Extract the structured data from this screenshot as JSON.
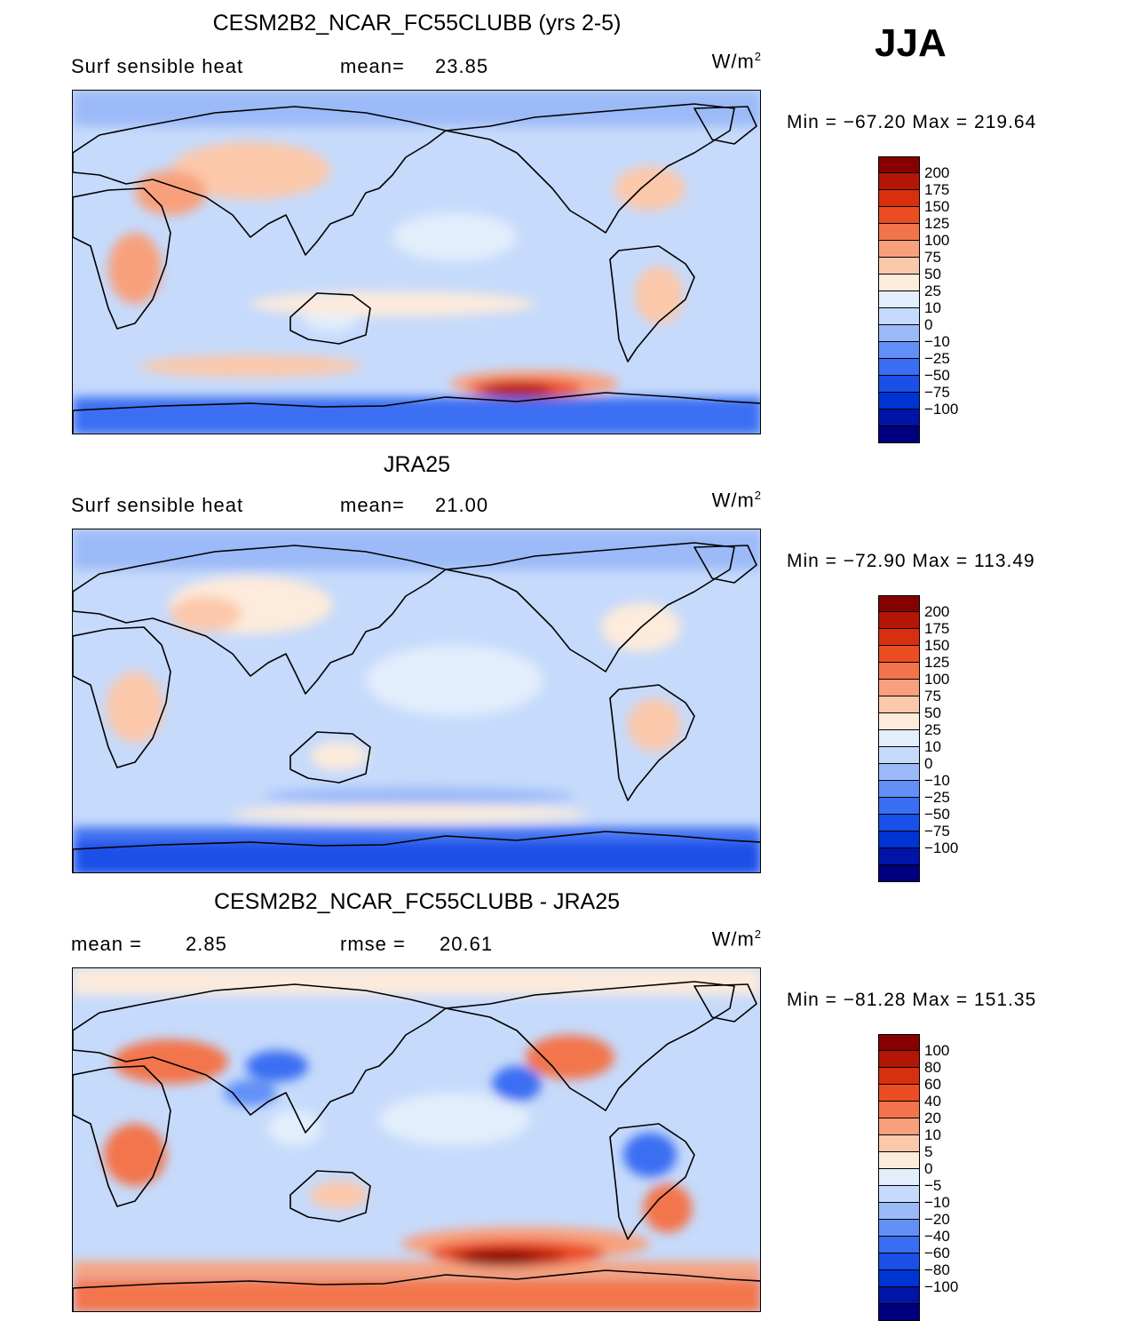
{
  "season": "JJA",
  "colors": {
    "full": [
      "#00007e",
      "#0014a8",
      "#0033d4",
      "#1a4fe8",
      "#3a6ef2",
      "#6290f7",
      "#9cbaf8",
      "#c6dafb",
      "#e2eefc",
      "#fdebdc",
      "#fcc8aa",
      "#f8a07c",
      "#f3744c",
      "#ec4c22",
      "#d8300f",
      "#b31606",
      "#850000"
    ],
    "diff": [
      "#00007e",
      "#0014a8",
      "#0033d4",
      "#1a4fe8",
      "#3a6ef2",
      "#6290f7",
      "#9cbaf8",
      "#c6dafb",
      "#e2eefc",
      "#fdebdc",
      "#fcc8aa",
      "#f8a07c",
      "#f3744c",
      "#ec4c22",
      "#d8300f",
      "#b31606",
      "#850000"
    ]
  },
  "panels": [
    {
      "title": "CESM2B2_NCAR_FC55CLUBB (yrs 2-5)",
      "left_label": "Surf  sensible  heat",
      "mid_label": "mean=",
      "mid_value": "23.85",
      "units": "W/m",
      "units_sup": "2",
      "minmax": "Min  =  −67.20  Max  =  219.64",
      "colorbar_labels": [
        "200",
        "175",
        "150",
        "125",
        "100",
        "75",
        "50",
        "25",
        "10",
        "0",
        "−10",
        "−25",
        "−50",
        "−75",
        "−100"
      ]
    },
    {
      "title": "JRA25",
      "left_label": "Surf  sensible  heat",
      "mid_label": "mean=",
      "mid_value": "21.00",
      "units": "W/m",
      "units_sup": "2",
      "minmax": "Min  =  −72.90  Max  =  113.49",
      "colorbar_labels": [
        "200",
        "175",
        "150",
        "125",
        "100",
        "75",
        "50",
        "25",
        "10",
        "0",
        "−10",
        "−25",
        "−50",
        "−75",
        "−100"
      ]
    },
    {
      "title": "CESM2B2_NCAR_FC55CLUBB - JRA25",
      "left_label": "mean  =",
      "left_value": "2.85",
      "mid_label": "rmse  =",
      "mid_value": "20.61",
      "units": "W/m",
      "units_sup": "2",
      "minmax": "Min  =  −81.28  Max  =  151.35",
      "colorbar_labels": [
        "100",
        "80",
        "60",
        "40",
        "20",
        "10",
        "5",
        "0",
        "−5",
        "−10",
        "−20",
        "−40",
        "−60",
        "−80",
        "−100"
      ]
    }
  ],
  "chart_data": [
    {
      "type": "heatmap",
      "title": "CESM2B2_NCAR_FC55CLUBB (yrs 2-5)",
      "variable": "Surf sensible heat",
      "units": "W/m2",
      "mean": 23.85,
      "min": -67.2,
      "max": 219.64,
      "levels": [
        -100,
        -75,
        -50,
        -25,
        -10,
        0,
        10,
        25,
        50,
        75,
        100,
        125,
        150,
        175,
        200
      ]
    },
    {
      "type": "heatmap",
      "title": "JRA25",
      "variable": "Surf sensible heat",
      "units": "W/m2",
      "mean": 21.0,
      "min": -72.9,
      "max": 113.49,
      "levels": [
        -100,
        -75,
        -50,
        -25,
        -10,
        0,
        10,
        25,
        50,
        75,
        100,
        125,
        150,
        175,
        200
      ]
    },
    {
      "type": "heatmap",
      "title": "CESM2B2_NCAR_FC55CLUBB - JRA25",
      "units": "W/m2",
      "mean": 2.85,
      "rmse": 20.61,
      "min": -81.28,
      "max": 151.35,
      "levels": [
        -100,
        -80,
        -60,
        -40,
        -20,
        -10,
        -5,
        0,
        5,
        10,
        20,
        40,
        60,
        80,
        100
      ]
    }
  ]
}
